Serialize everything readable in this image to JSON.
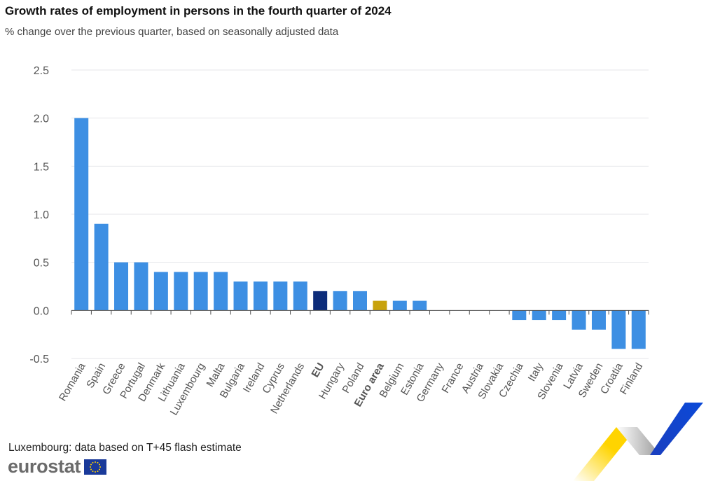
{
  "title": "Growth rates of employment in persons in the fourth quarter of 2024",
  "subtitle": "% change over the previous quarter, based on seasonally adjusted data",
  "footnote": "Luxembourg: data based on T+45 flash estimate",
  "brand": {
    "name": "eurostat",
    "logo_icon": "eu-flag-icon"
  },
  "colors": {
    "country": "#3d8fe3",
    "eu": "#0d2c7a",
    "euro_area": "#c8a20c",
    "grid": "#e4e6ea",
    "axis": "#555555"
  },
  "chart_data": {
    "type": "bar",
    "title": "Growth rates of employment in persons in the fourth quarter of 2024",
    "subtitle": "% change over the previous quarter, based on seasonally adjusted data",
    "xlabel": "",
    "ylabel": "",
    "ylim": [
      -0.5,
      2.5
    ],
    "yticks": [
      "-0.5",
      "0.0",
      "0.5",
      "1.0",
      "1.5",
      "2.0",
      "2.5"
    ],
    "grid": true,
    "legend": "none",
    "categories": [
      "Romania",
      "Spain",
      "Greece",
      "Portugal",
      "Denmark",
      "Lithuania",
      "Luxembourg",
      "Malta",
      "Bulgaria",
      "Ireland",
      "Cyprus",
      "Netherlands",
      "EU",
      "Hungary",
      "Poland",
      "Euro area",
      "Belgium",
      "Estonia",
      "Germany",
      "France",
      "Austria",
      "Slovakia",
      "Czechia",
      "Italy",
      "Slovenia",
      "Latvia",
      "Sweden",
      "Croatia",
      "Finland"
    ],
    "values": [
      2.0,
      0.9,
      0.5,
      0.5,
      0.4,
      0.4,
      0.4,
      0.4,
      0.3,
      0.3,
      0.3,
      0.3,
      0.2,
      0.2,
      0.2,
      0.1,
      0.1,
      0.1,
      0.0,
      0.0,
      0.0,
      0.0,
      -0.1,
      -0.1,
      -0.1,
      -0.2,
      -0.2,
      -0.4,
      -0.4
    ],
    "highlight": {
      "EU": "eu",
      "Euro area": "euro_area"
    },
    "bold_categories": [
      "EU",
      "Euro area"
    ]
  }
}
